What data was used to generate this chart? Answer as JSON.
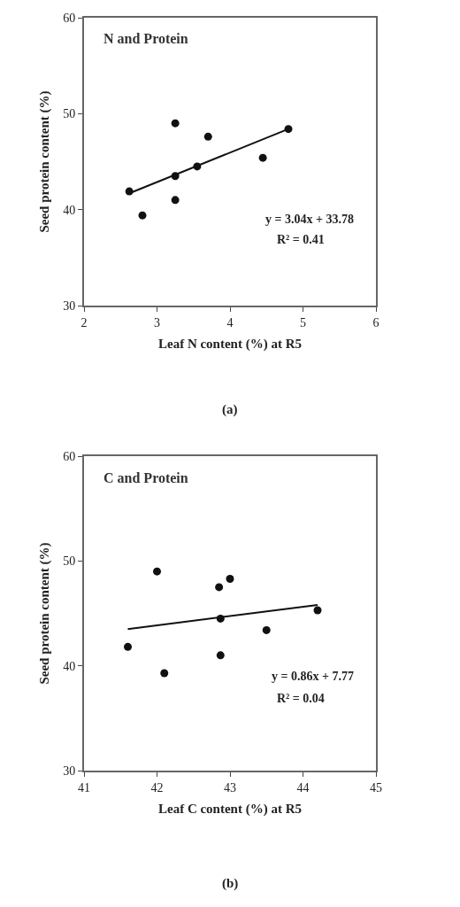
{
  "chart_data": [
    {
      "type": "scatter",
      "title": "N and Protein",
      "xlabel": "Leaf N content (%) at R5",
      "ylabel": "Seed protein content (%)",
      "annotations": [
        "y = 3.04x + 33.78",
        "R² = 0.41",
        "(a)"
      ],
      "xlim": [
        2,
        6
      ],
      "xticks": [
        2,
        3,
        4,
        5,
        6
      ],
      "ylim": [
        30,
        60
      ],
      "yticks": [
        30,
        40,
        50,
        60
      ],
      "marker": "circle",
      "series": [
        {
          "color": "#111111",
          "x": [
            2.62,
            2.8,
            3.25,
            3.25,
            3.25,
            3.55,
            3.7,
            4.45,
            4.8
          ],
          "values": [
            41.9,
            39.4,
            49,
            43.5,
            41,
            44.5,
            47.6,
            45.4,
            48.4
          ]
        },
        {
          "type": "line",
          "marker": "none",
          "color": "#111111",
          "x": [
            2.62,
            4.8
          ],
          "values": [
            41.7,
            48.4
          ]
        }
      ]
    },
    {
      "type": "scatter",
      "title": "C and Protein",
      "xlabel": "Leaf C content (%) at R5",
      "ylabel": "Seed protein content (%)",
      "annotations": [
        "y = 0.86x + 7.77",
        "R² = 0.04",
        "(b)"
      ],
      "xlim": [
        41,
        45
      ],
      "xticks": [
        41,
        42,
        43,
        44,
        45
      ],
      "ylim": [
        30,
        60
      ],
      "yticks": [
        30,
        40,
        50,
        60
      ],
      "marker": "circle",
      "series": [
        {
          "color": "#111111",
          "x": [
            41.6,
            42.0,
            42.1,
            42.85,
            43.0,
            42.87,
            42.87,
            43.5,
            44.2
          ],
          "values": [
            41.8,
            49,
            39.3,
            47.5,
            48.3,
            44.5,
            41,
            43.4,
            45.3
          ]
        },
        {
          "type": "line",
          "marker": "none",
          "color": "#111111",
          "x": [
            41.6,
            44.2
          ],
          "values": [
            43.5,
            45.8
          ]
        }
      ]
    }
  ]
}
